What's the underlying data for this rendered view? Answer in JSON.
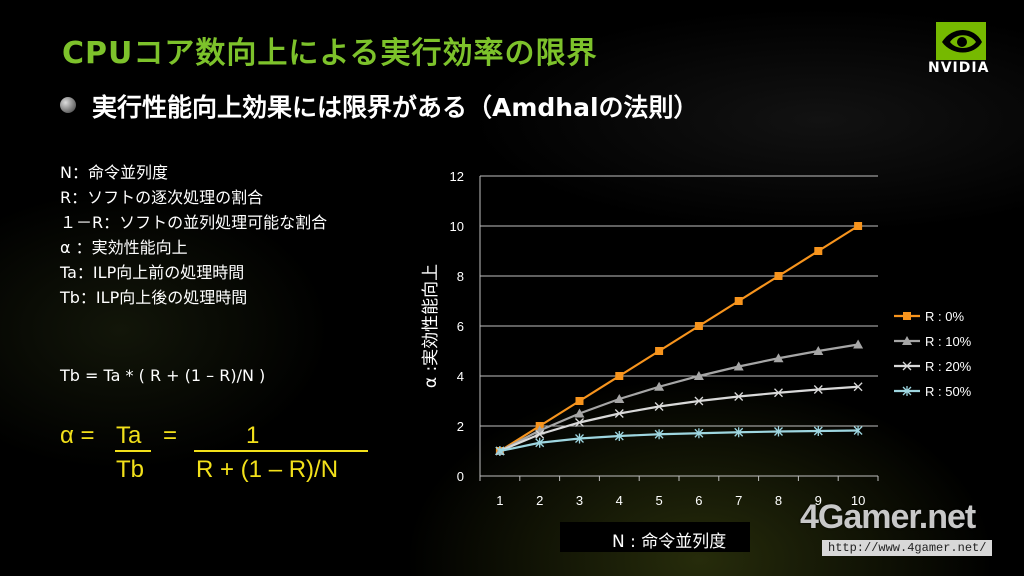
{
  "slide": {
    "title": "CPUコア数向上による実行効率の限界",
    "bullet": "実行性能向上効果には限界がある（Amdhalの法則）",
    "logo_text": "NVIDIA",
    "accent_color": "#7dc22b",
    "formula_color": "#f2e01a"
  },
  "definitions": [
    "N：命令並列度",
    "R：ソフトの逐次処理の割合",
    "１－R：ソフトの並列処理可能な割合",
    "α ：実効性能向上",
    "Ta：ILP向上前の処理時間",
    "Tb：ILP向上後の処理時間"
  ],
  "formula": {
    "equation": "Tb = Ta * ( R + (1 – R)/N )",
    "alpha": "α =",
    "ta": "Ta",
    "tb": "Tb",
    "equals": "=",
    "one": "1",
    "denominator": "R + (1 – R)/N"
  },
  "watermark": {
    "brand": "4Gamer.net",
    "url": "http://www.4gamer.net/"
  },
  "chart_data": {
    "type": "line",
    "xlabel": "N : 命令並列度",
    "ylabel": "α :実効性能向上",
    "x": [
      1,
      2,
      3,
      4,
      5,
      6,
      7,
      8,
      9,
      10
    ],
    "ylim": [
      0,
      12
    ],
    "yticks": [
      0,
      2,
      4,
      6,
      8,
      10,
      12
    ],
    "grid": true,
    "legend_position": "right",
    "series": [
      {
        "name": "R : 0%",
        "color": "#f7941d",
        "marker": "square",
        "values": [
          1,
          2,
          3,
          4,
          5,
          6,
          7,
          8,
          9,
          10
        ]
      },
      {
        "name": "R : 10%",
        "color": "#a6a6a6",
        "marker": "triangle",
        "values": [
          1,
          1.82,
          2.5,
          3.08,
          3.57,
          4.0,
          4.38,
          4.71,
          5.0,
          5.26
        ]
      },
      {
        "name": "R : 20%",
        "color": "#d9d9d9",
        "marker": "x",
        "values": [
          1,
          1.67,
          2.14,
          2.5,
          2.78,
          3.0,
          3.18,
          3.33,
          3.46,
          3.57
        ]
      },
      {
        "name": "R : 50%",
        "color": "#9ed6e0",
        "marker": "star",
        "values": [
          1,
          1.33,
          1.5,
          1.6,
          1.67,
          1.71,
          1.75,
          1.78,
          1.8,
          1.82
        ]
      }
    ]
  }
}
